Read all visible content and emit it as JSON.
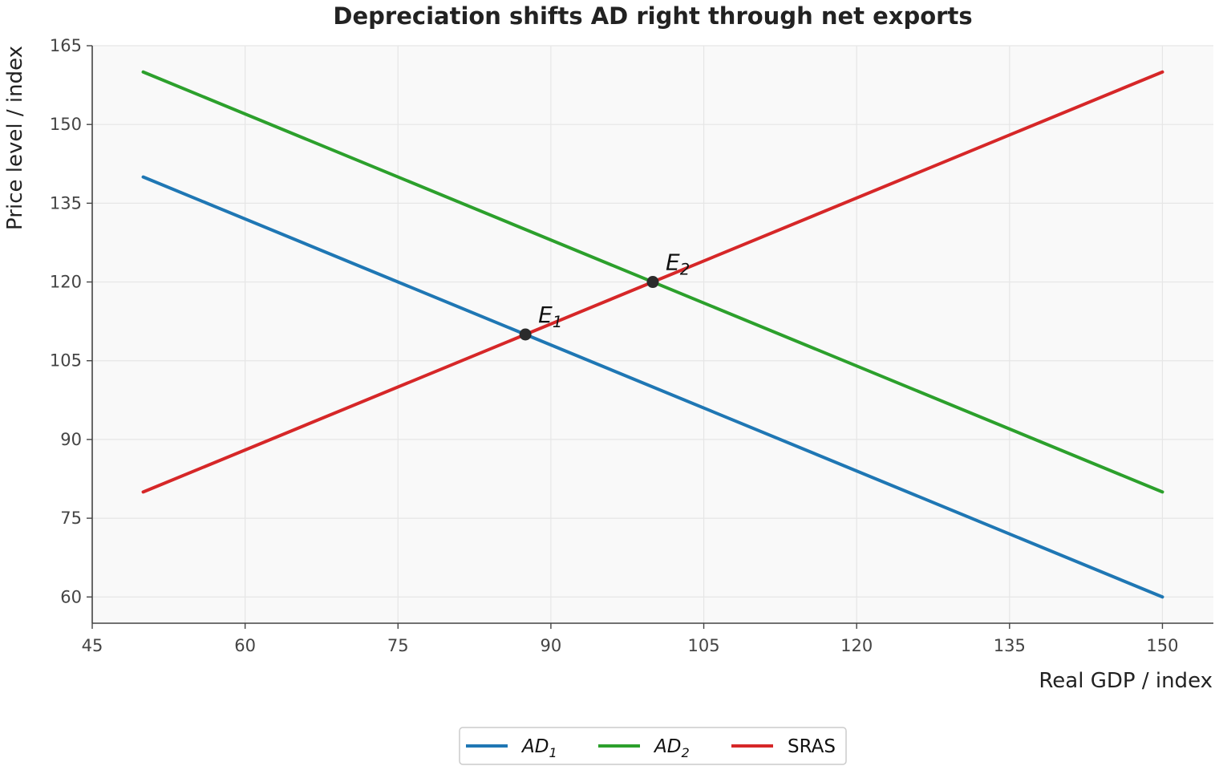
{
  "chart_data": {
    "type": "line",
    "title": "Depreciation shifts AD right through net exports",
    "xlabel": "Real GDP / index",
    "ylabel": "Price level / index",
    "xlim": [
      45,
      155
    ],
    "ylim": [
      55,
      165
    ],
    "xticks": [
      45,
      60,
      75,
      90,
      105,
      120,
      135,
      150
    ],
    "yticks": [
      60,
      75,
      90,
      105,
      120,
      135,
      150,
      165
    ],
    "grid": true,
    "legend_position": "bottom-center",
    "series": [
      {
        "name": "AD",
        "subscript": "1",
        "italic": true,
        "color": "#1f77b4",
        "x": [
          50,
          150
        ],
        "y": [
          140,
          60
        ]
      },
      {
        "name": "AD",
        "subscript": "2",
        "italic": true,
        "color": "#2ca02c",
        "x": [
          50,
          150
        ],
        "y": [
          160,
          80
        ]
      },
      {
        "name": "SRAS",
        "subscript": "",
        "italic": false,
        "color": "#d62728",
        "x": [
          50,
          150
        ],
        "y": [
          80,
          160
        ]
      }
    ],
    "points": [
      {
        "label": "E",
        "subscript": "1",
        "x": 87.5,
        "y": 110,
        "color": "#2b2b2b"
      },
      {
        "label": "E",
        "subscript": "2",
        "x": 100,
        "y": 120,
        "color": "#2b2b2b"
      }
    ]
  }
}
